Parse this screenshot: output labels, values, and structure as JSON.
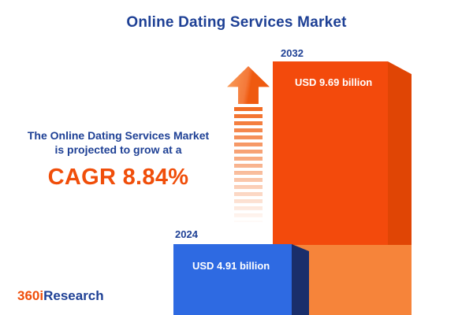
{
  "title": "Online Dating Services Market",
  "description": {
    "line1": "The Online Dating Services Market",
    "line2": "is projected to grow at a",
    "cagr": "CAGR 8.84%"
  },
  "chart_data": {
    "type": "bar",
    "title": "Online Dating Services Market",
    "categories": [
      "2024",
      "2032"
    ],
    "values": [
      4.91,
      9.69
    ],
    "value_labels": [
      "USD 4.91 billion",
      "USD 9.69 billion"
    ],
    "unit": "USD billions",
    "cagr_percent": "8.84%",
    "legend_position": "none",
    "bar_colors": [
      "#2e6ae2",
      "#f34a0c"
    ]
  },
  "logo": {
    "part1": "360i",
    "part2": "Research"
  },
  "colors": {
    "navy": "#1e4095",
    "orange": "#f04e0a",
    "orange_bar": "#f34a0c",
    "orange_light": "#f6843a",
    "blue_bar": "#2e6ae2",
    "blue_side": "#1a2e6b",
    "background": "#ffffff"
  }
}
